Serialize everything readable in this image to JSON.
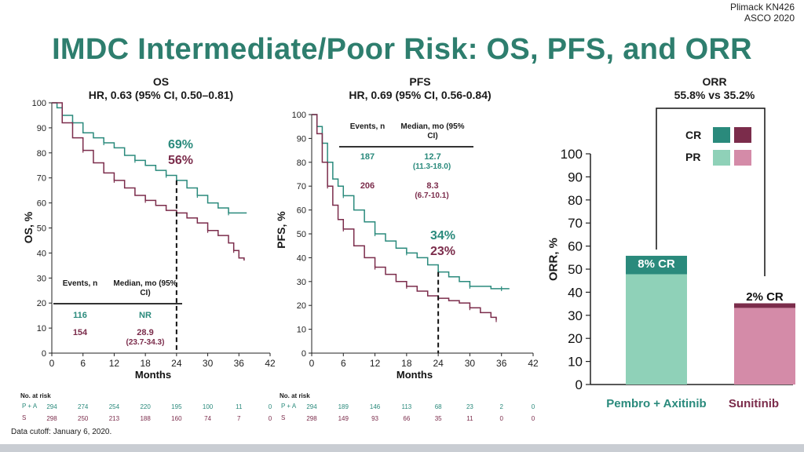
{
  "header": {
    "corner_line1": "Plimack KN426",
    "corner_line2": "ASCO 2020",
    "title": "IMDC Intermediate/Poor Risk: OS, PFS, and ORR"
  },
  "footnote": "Data cutoff: January 6, 2020.",
  "colors": {
    "teal": "#2a8a7c",
    "maroon": "#7b2c4b",
    "teal_light": "#8fd1b8",
    "maroon_light": "#d48ba8"
  },
  "chart_data": [
    {
      "type": "line",
      "title": "OS",
      "subtitle": "HR, 0.63 (95% CI, 0.50–0.81)",
      "xlabel": "Months",
      "ylabel": "OS, %",
      "xlim": [
        0,
        42
      ],
      "ylim": [
        0,
        100
      ],
      "xticks": [
        "0",
        "6",
        "12",
        "18",
        "24",
        "30",
        "36",
        "42"
      ],
      "yticks": [
        "0",
        "10",
        "20",
        "30",
        "40",
        "50",
        "60",
        "70",
        "80",
        "90",
        "100"
      ],
      "series": [
        {
          "name": "P + A",
          "color": "#2a8a7c",
          "x": [
            0,
            1,
            2,
            4,
            6,
            8,
            10,
            12,
            14,
            16,
            18,
            20,
            22,
            24,
            26,
            28,
            30,
            32,
            34,
            36,
            37.5
          ],
          "y": [
            100,
            98,
            95,
            92,
            88,
            86,
            84,
            82,
            79,
            77,
            75,
            73,
            71,
            69,
            66,
            63,
            60,
            58,
            56,
            56,
            56
          ]
        },
        {
          "name": "S",
          "color": "#7b2c4b",
          "x": [
            0,
            2,
            4,
            6,
            8,
            10,
            12,
            14,
            16,
            18,
            20,
            22,
            24,
            26,
            28,
            30,
            32,
            34,
            35,
            36,
            37
          ],
          "y": [
            100,
            92,
            86,
            81,
            76,
            72,
            69,
            66,
            63,
            61,
            59,
            57,
            56,
            54,
            52,
            49,
            47,
            44,
            41,
            38,
            37
          ]
        }
      ],
      "landmark_labels": [
        "69%",
        "56%"
      ],
      "table": {
        "headers": [
          "Events, n",
          "Median, mo (95% CI)"
        ],
        "rows": [
          {
            "events": "116",
            "median": "NR",
            "ci": ""
          },
          {
            "events": "154",
            "median": "28.9",
            "ci": "(23.7-34.3)"
          }
        ]
      },
      "at_risk": {
        "label": "No. at risk",
        "rows": [
          {
            "arm": "P + A",
            "values": [
              "294",
              "274",
              "254",
              "220",
              "195",
              "100",
              "11",
              "0"
            ]
          },
          {
            "arm": "S",
            "values": [
              "298",
              "250",
              "213",
              "188",
              "160",
              "74",
              "7",
              "0"
            ]
          }
        ]
      }
    },
    {
      "type": "line",
      "title": "PFS",
      "subtitle": "HR, 0.69 (95% CI, 0.56-0.84)",
      "xlabel": "Months",
      "ylabel": "PFS, %",
      "xlim": [
        0,
        42
      ],
      "ylim": [
        0,
        100
      ],
      "xticks": [
        "0",
        "6",
        "12",
        "18",
        "24",
        "30",
        "36",
        "42"
      ],
      "yticks": [
        "0",
        "10",
        "20",
        "30",
        "40",
        "50",
        "60",
        "70",
        "80",
        "90",
        "100"
      ],
      "series": [
        {
          "name": "P + A",
          "color": "#2a8a7c",
          "x": [
            0,
            1,
            2,
            3,
            4,
            5,
            6,
            8,
            10,
            12,
            14,
            16,
            18,
            20,
            22,
            24,
            26,
            28,
            30,
            32,
            34,
            36,
            37.5
          ],
          "y": [
            100,
            95,
            88,
            80,
            73,
            70,
            66,
            60,
            55,
            50,
            47,
            44,
            42,
            40,
            37,
            34,
            32,
            30,
            28,
            28,
            27,
            27,
            27
          ]
        },
        {
          "name": "S",
          "color": "#7b2c4b",
          "x": [
            0,
            1,
            2,
            3,
            4,
            5,
            6,
            8,
            10,
            12,
            14,
            16,
            18,
            20,
            22,
            24,
            26,
            28,
            30,
            32,
            34,
            35
          ],
          "y": [
            100,
            92,
            80,
            70,
            62,
            56,
            52,
            45,
            40,
            36,
            33,
            30,
            28,
            26,
            24,
            23,
            22,
            21,
            19,
            17,
            15,
            14
          ]
        }
      ],
      "landmark_labels": [
        "34%",
        "23%"
      ],
      "table": {
        "headers": [
          "Events, n",
          "Median, mo (95% CI)"
        ],
        "rows": [
          {
            "events": "187",
            "median": "12.7",
            "ci": "(11.3-18.0)"
          },
          {
            "events": "206",
            "median": "8.3",
            "ci": "(6.7-10.1)"
          }
        ]
      },
      "at_risk": {
        "label": "No. at risk",
        "rows": [
          {
            "arm": "P + A",
            "values": [
              "294",
              "189",
              "146",
              "113",
              "68",
              "23",
              "2",
              "0"
            ]
          },
          {
            "arm": "S",
            "values": [
              "298",
              "149",
              "93",
              "66",
              "35",
              "11",
              "0",
              "0"
            ]
          }
        ]
      }
    },
    {
      "type": "bar",
      "title": "ORR",
      "subtitle": "55.8% vs 35.2%",
      "ylabel": "ORR, %",
      "ylim": [
        0,
        100
      ],
      "yticks": [
        "0",
        "10",
        "20",
        "30",
        "40",
        "50",
        "60",
        "70",
        "80",
        "90",
        "100"
      ],
      "categories": [
        "Pembro + Axitinib",
        "Sunitinib"
      ],
      "series": [
        {
          "name": "CR",
          "values": [
            8,
            2
          ]
        },
        {
          "name": "PR",
          "values": [
            47.8,
            33.2
          ]
        }
      ],
      "bar_labels": [
        "8% CR",
        "2% CR"
      ],
      "legend": [
        "CR",
        "PR"
      ]
    }
  ]
}
